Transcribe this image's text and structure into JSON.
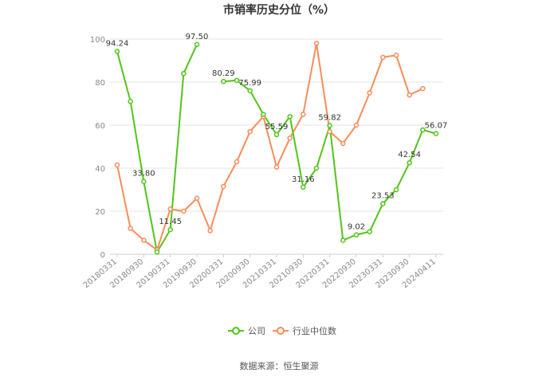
{
  "chart_data": {
    "type": "line",
    "title": "市销率历史分位（%）",
    "ylim": [
      0,
      100
    ],
    "yticks": [
      0,
      20,
      40,
      60,
      80,
      100
    ],
    "x": [
      "20180331",
      "20180630",
      "20180930",
      "20181231",
      "20190331",
      "20190630",
      "20190930",
      "20191231",
      "20200331",
      "20200630",
      "20200930",
      "20201231",
      "20210331",
      "20210630",
      "20210930",
      "20211231",
      "20220331",
      "20220630",
      "20220930",
      "20221231",
      "20230331",
      "20230630",
      "20230930",
      "20231231",
      "20240411"
    ],
    "xtick_labels": [
      "20180331",
      "20180930",
      "20190331",
      "20190930",
      "20200331",
      "20200930",
      "20210331",
      "20210930",
      "20220331",
      "20220930",
      "20230331",
      "20230930",
      "20240411"
    ],
    "series": [
      {
        "name": "公司",
        "color": "#52c41a",
        "values": [
          94.24,
          71.0,
          33.8,
          1.0,
          11.45,
          84.0,
          97.5,
          null,
          80.29,
          80.8,
          75.99,
          65.0,
          55.59,
          64.0,
          31.16,
          40.0,
          59.82,
          6.5,
          9.02,
          10.5,
          23.53,
          30.0,
          42.54,
          57.8,
          56.07
        ]
      },
      {
        "name": "行业中位数",
        "color": "#fa8c5a",
        "values": [
          41.5,
          12.0,
          6.5,
          2.0,
          21.0,
          20.0,
          26.0,
          11.0,
          31.5,
          43.0,
          57.0,
          64.0,
          40.5,
          54.0,
          65.0,
          98.0,
          57.0,
          51.5,
          60.0,
          75.0,
          91.5,
          92.5,
          74.0,
          77.0,
          null
        ]
      }
    ],
    "labels": [
      {
        "series": 0,
        "index": 0,
        "text": "94.24"
      },
      {
        "series": 0,
        "index": 2,
        "text": "33.80"
      },
      {
        "series": 0,
        "index": 4,
        "text": "11.45"
      },
      {
        "series": 0,
        "index": 6,
        "text": "97.50"
      },
      {
        "series": 0,
        "index": 8,
        "text": "80.29"
      },
      {
        "series": 0,
        "index": 10,
        "text": "75.99"
      },
      {
        "series": 0,
        "index": 12,
        "text": "55.59"
      },
      {
        "series": 0,
        "index": 14,
        "text": "31.16"
      },
      {
        "series": 0,
        "index": 16,
        "text": "59.82"
      },
      {
        "series": 0,
        "index": 18,
        "text": "9.02"
      },
      {
        "series": 0,
        "index": 20,
        "text": "23.53"
      },
      {
        "series": 0,
        "index": 22,
        "text": "42.54"
      },
      {
        "series": 0,
        "index": 24,
        "text": "56.07"
      }
    ],
    "grid": true,
    "legend_position": "bottom"
  },
  "legend": {
    "company": "公司",
    "industry": "行业中位数"
  },
  "source": "数据来源：恒生聚源"
}
